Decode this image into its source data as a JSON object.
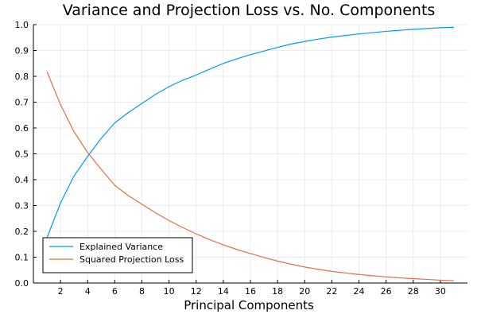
{
  "chart_data": {
    "type": "line",
    "title": "Variance and Projection Loss vs. No. Components",
    "xlabel": "Principal Components",
    "ylabel": "",
    "xlim": [
      0,
      32
    ],
    "ylim": [
      0.0,
      1.0
    ],
    "xticks": [
      2,
      4,
      6,
      8,
      10,
      12,
      14,
      16,
      18,
      20,
      22,
      24,
      26,
      28,
      30
    ],
    "yticks": [
      0.0,
      0.1,
      0.2,
      0.3,
      0.4,
      0.5,
      0.6,
      0.7,
      0.8,
      0.9,
      1.0
    ],
    "yticklabels": [
      "0.0",
      "0.1",
      "0.2",
      "0.3",
      "0.4",
      "0.5",
      "0.6",
      "0.7",
      "0.8",
      "0.9",
      "1.0"
    ],
    "grid": true,
    "legend_position": "bottom-left",
    "x": [
      1,
      2,
      3,
      4,
      5,
      6,
      7,
      8,
      9,
      10,
      11,
      12,
      13,
      14,
      15,
      16,
      17,
      18,
      19,
      20,
      21,
      22,
      23,
      24,
      25,
      26,
      27,
      28,
      29,
      30,
      31
    ],
    "series": [
      {
        "name": "Explained Variance",
        "color": "#009AFA",
        "values": [
          0.175,
          0.31,
          0.415,
          0.49,
          0.56,
          0.62,
          0.66,
          0.695,
          0.73,
          0.76,
          0.785,
          0.805,
          0.828,
          0.85,
          0.868,
          0.884,
          0.898,
          0.912,
          0.925,
          0.935,
          0.944,
          0.952,
          0.958,
          0.964,
          0.969,
          0.974,
          0.978,
          0.982,
          0.985,
          0.988,
          0.99
        ]
      },
      {
        "name": "Squared Projection Loss",
        "color": "#E26F46",
        "values": [
          0.818,
          0.69,
          0.585,
          0.505,
          0.44,
          0.378,
          0.338,
          0.305,
          0.272,
          0.242,
          0.215,
          0.19,
          0.168,
          0.148,
          0.13,
          0.114,
          0.099,
          0.085,
          0.073,
          0.062,
          0.053,
          0.045,
          0.039,
          0.033,
          0.028,
          0.024,
          0.02,
          0.017,
          0.014,
          0.011,
          0.009
        ]
      }
    ]
  }
}
